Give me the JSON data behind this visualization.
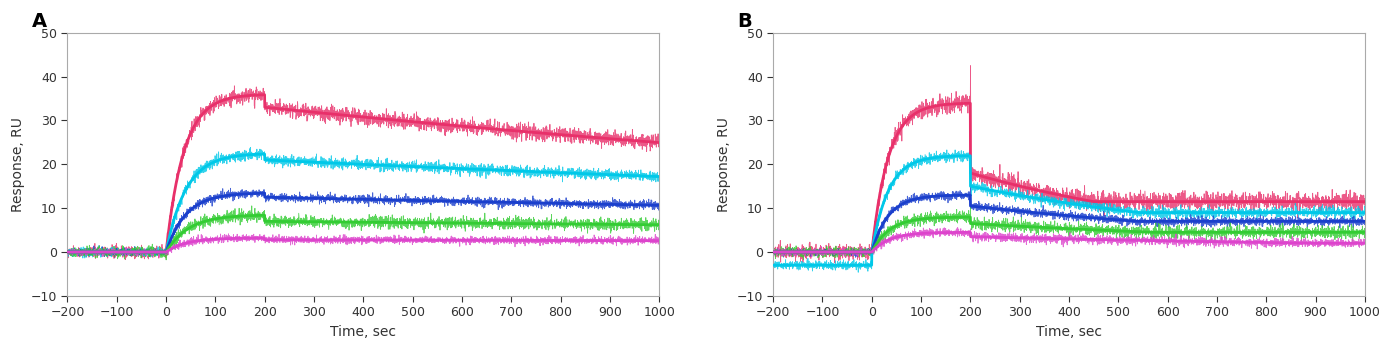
{
  "panel_A_label": "A",
  "panel_B_label": "B",
  "xlabel": "Time, sec",
  "ylabel": "Response, RU",
  "xlim": [
    -200,
    1000
  ],
  "ylim": [
    -10,
    50
  ],
  "xticks": [
    -200,
    -100,
    0,
    100,
    200,
    300,
    400,
    500,
    600,
    700,
    800,
    900,
    1000
  ],
  "yticks": [
    -10,
    0,
    10,
    20,
    30,
    40,
    50
  ],
  "association_start": 0,
  "dissociation_start": 200,
  "background_color": "#ffffff",
  "panel_A": {
    "curves": [
      {
        "color": "#e8306a",
        "noise": 1.5,
        "plateau_assoc": 36.0,
        "plateau_dissoc": 33.0,
        "ka": 0.028,
        "kd": 0.00035,
        "baseline": 0.0
      },
      {
        "color": "#00c8e8",
        "noise": 1.1,
        "plateau_assoc": 22.5,
        "plateau_dissoc": 21.0,
        "ka": 0.025,
        "kd": 0.00025,
        "baseline": 0.0
      },
      {
        "color": "#1a3fcc",
        "noise": 0.9,
        "plateau_assoc": 13.5,
        "plateau_dissoc": 12.5,
        "ka": 0.025,
        "kd": 0.0002,
        "baseline": 0.0
      },
      {
        "color": "#33cc33",
        "noise": 1.2,
        "plateau_assoc": 8.5,
        "plateau_dissoc": 7.0,
        "ka": 0.022,
        "kd": 0.00015,
        "baseline": 0.0
      },
      {
        "color": "#dd44cc",
        "noise": 0.8,
        "plateau_assoc": 3.2,
        "plateau_dissoc": 2.8,
        "ka": 0.025,
        "kd": 0.0001,
        "baseline": 0.0
      }
    ]
  },
  "panel_B": {
    "curves": [
      {
        "color": "#e8306a",
        "noise": 1.8,
        "plateau_assoc": 34.0,
        "spike": 42.5,
        "plateau_dissoc_start": 18.0,
        "plateau_dissoc_end": 11.5,
        "ka": 0.03,
        "kd": 0.0018,
        "baseline": 0.0
      },
      {
        "color": "#00c8e8",
        "noise": 1.1,
        "plateau_assoc": 22.0,
        "spike": 25.0,
        "plateau_dissoc_start": 15.0,
        "plateau_dissoc_end": 9.0,
        "ka": 0.03,
        "kd": 0.0015,
        "baseline": -3.0
      },
      {
        "color": "#1a3fcc",
        "noise": 0.9,
        "plateau_assoc": 13.0,
        "spike": 16.0,
        "plateau_dissoc_start": 10.5,
        "plateau_dissoc_end": 7.0,
        "ka": 0.03,
        "kd": 0.0012,
        "baseline": 0.0
      },
      {
        "color": "#33cc33",
        "noise": 1.2,
        "plateau_assoc": 8.0,
        "spike": 10.0,
        "plateau_dissoc_start": 6.5,
        "plateau_dissoc_end": 4.5,
        "ka": 0.028,
        "kd": 0.001,
        "baseline": 0.0
      },
      {
        "color": "#dd44cc",
        "noise": 0.9,
        "plateau_assoc": 4.5,
        "spike": 5.5,
        "plateau_dissoc_start": 3.5,
        "plateau_dissoc_end": 2.0,
        "ka": 0.028,
        "kd": 0.0008,
        "baseline": 0.0
      }
    ]
  }
}
